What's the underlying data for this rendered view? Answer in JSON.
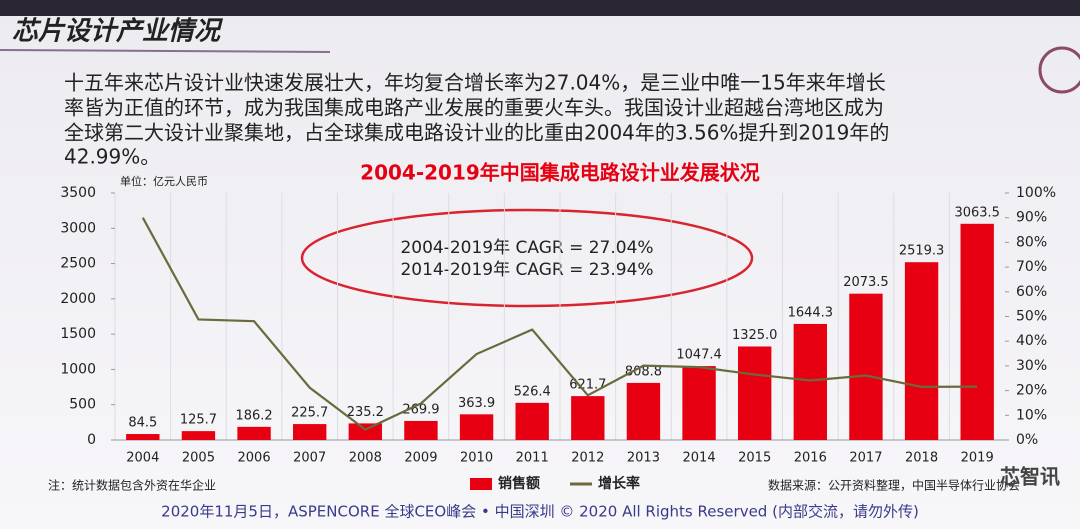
{
  "slide": {
    "title": "芯片设计产业情况",
    "paragraph": [
      "十五年来芯片设计业快速发展壮大，年均复合增长率为27.04%，是三业中唯一15年来年增长",
      "率皆为正值的环节，成为我国集成电路产业发展的重要火车头。我国设计业超越台湾地区成为",
      "全球第二大设计业聚集地，占全球集成电路设计业的比重由2004年的3.56%提升到2019年的",
      "42.99%。"
    ],
    "footer": "2020年11月5日，ASPENCORE 全球CEO峰会 • 中国深圳 © 2020 All Rights Reserved (内部交流，请勿外传)",
    "watermark": "芯智讯"
  },
  "chart_data": {
    "type": "bar",
    "title": "2004-2019年中国集成电路设计业发展状况",
    "unit": "单位：亿元人民币",
    "annotations": [
      "2004-2019年  CAGR = 27.04%",
      "2014-2019年  CAGR = 23.94%"
    ],
    "note": "注：统计数据包含外资在华企业",
    "source": "数据来源：公开资料整理，中国半导体行业协会",
    "categories": [
      "2004",
      "2005",
      "2006",
      "2007",
      "2008",
      "2009",
      "2010",
      "2011",
      "2012",
      "2013",
      "2014",
      "2015",
      "2016",
      "2017",
      "2018",
      "2019"
    ],
    "series": [
      {
        "name": "销售额",
        "type": "bar",
        "color": "#e60012",
        "values": [
          84.5,
          125.7,
          186.2,
          225.7,
          235.2,
          269.9,
          363.9,
          526.4,
          621.7,
          808.8,
          1047.4,
          1325.0,
          1644.3,
          2073.5,
          2519.3,
          3063.5
        ],
        "value_labels": [
          "84.5",
          "125.7",
          "186.2",
          "225.7",
          "235.2",
          "269.9",
          "363.9",
          "526.4",
          "621.7",
          "808.8",
          "1047.4",
          "1325.0",
          "1644.3",
          "2073.5",
          "2519.3",
          "3063.5"
        ]
      },
      {
        "name": "增长率",
        "type": "line",
        "axis": "y2",
        "color": "#6b6a3c",
        "values": [
          90,
          48.8,
          48.1,
          21.2,
          4.2,
          14.8,
          34.8,
          44.7,
          18.1,
          30.1,
          29.5,
          26.5,
          24.1,
          26.1,
          21.5,
          21.6
        ]
      }
    ],
    "ylim": [
      0,
      3500
    ],
    "yticks": [
      0,
      500,
      1000,
      1500,
      2000,
      2500,
      3000,
      3500
    ],
    "y2lim": [
      0,
      100
    ],
    "y2ticks": [
      {
        "value": 0,
        "label": "0%"
      },
      {
        "value": 10,
        "label": "10%"
      },
      {
        "value": 20,
        "label": "20%"
      },
      {
        "value": 30,
        "label": "30%"
      },
      {
        "value": 40,
        "label": "40%"
      },
      {
        "value": 50,
        "label": "50%"
      },
      {
        "value": 60,
        "label": "60%"
      },
      {
        "value": 70,
        "label": "70%"
      },
      {
        "value": 80,
        "label": "80%"
      },
      {
        "value": 90,
        "label": "90%"
      },
      {
        "value": 100,
        "label": "100%"
      }
    ]
  }
}
